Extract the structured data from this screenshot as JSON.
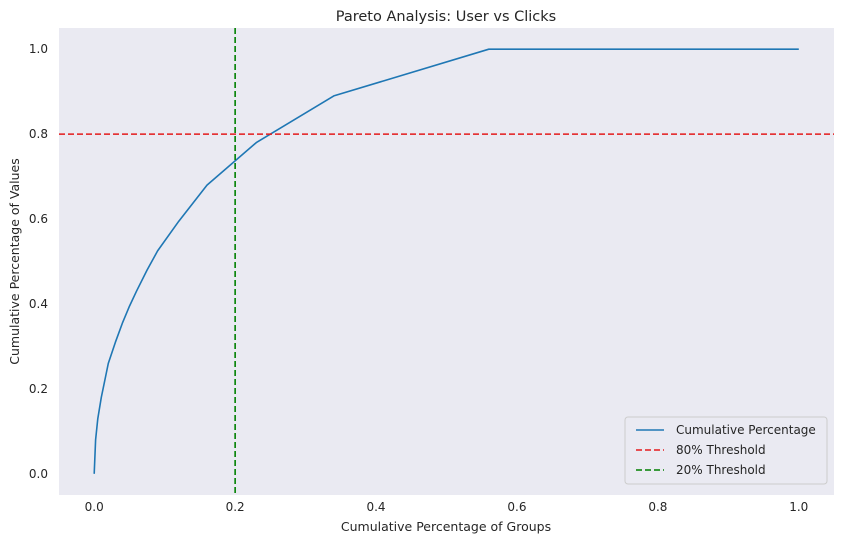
{
  "chart_data": {
    "type": "line",
    "title": "Pareto Analysis: User vs Clicks",
    "xlabel": "Cumulative Percentage of Groups",
    "ylabel": "Cumulative Percentage of Values",
    "xlim": [
      -0.05,
      1.05
    ],
    "ylim": [
      -0.05,
      1.05
    ],
    "xticks": [
      0.0,
      0.2,
      0.4,
      0.6,
      0.8,
      1.0
    ],
    "yticks": [
      0.0,
      0.2,
      0.4,
      0.6,
      0.8,
      1.0
    ],
    "xtick_labels": [
      "0.0",
      "0.2",
      "0.4",
      "0.6",
      "0.8",
      "1.0"
    ],
    "ytick_labels": [
      "0.0",
      "0.2",
      "0.4",
      "0.6",
      "0.8",
      "1.0"
    ],
    "grid": false,
    "background": "#eaeaf2",
    "legend_position": "lower-right",
    "series": [
      {
        "name": "Cumulative Percentage",
        "color": "#1f77b4",
        "style": "solid",
        "x": [
          0.0,
          0.002,
          0.005,
          0.01,
          0.015,
          0.02,
          0.03,
          0.04,
          0.05,
          0.06,
          0.075,
          0.09,
          0.12,
          0.16,
          0.23,
          0.34,
          0.56,
          1.0
        ],
        "y": [
          0.0,
          0.08,
          0.13,
          0.18,
          0.22,
          0.26,
          0.31,
          0.355,
          0.395,
          0.43,
          0.48,
          0.525,
          0.595,
          0.68,
          0.78,
          0.89,
          1.0,
          1.0
        ]
      },
      {
        "name": "80% Threshold",
        "color": "#e41a1c",
        "style": "dashed",
        "orientation": "horizontal",
        "value": 0.8
      },
      {
        "name": "20% Threshold",
        "color": "#008000",
        "style": "dashed",
        "orientation": "vertical",
        "value": 0.2
      }
    ]
  }
}
